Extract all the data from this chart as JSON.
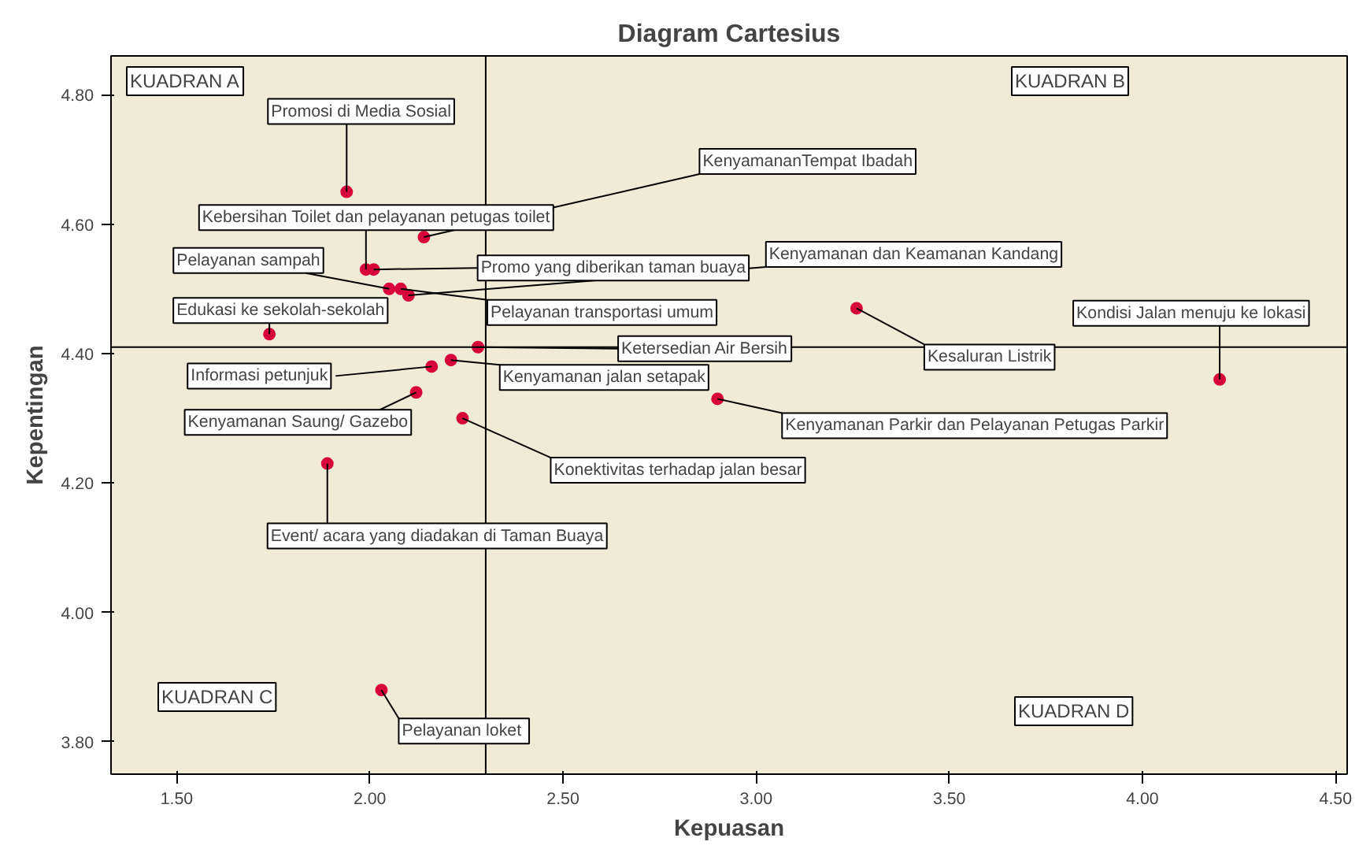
{
  "chart_data": {
    "type": "scatter",
    "title": "Diagram Cartesius",
    "xlabel": "Kepuasan",
    "ylabel": "Kepentingan",
    "x": [
      1.94,
      2.14,
      1.99,
      2.05,
      2.01,
      2.1,
      1.74,
      2.08,
      2.28,
      2.16,
      2.21,
      2.12,
      2.24,
      2.9,
      3.26,
      4.2,
      1.89,
      2.03
    ],
    "values": [
      4.65,
      4.58,
      4.53,
      4.5,
      4.53,
      4.49,
      4.43,
      4.5,
      4.41,
      4.38,
      4.39,
      4.34,
      4.3,
      4.33,
      4.47,
      4.36,
      4.23,
      3.88
    ],
    "color": "#d7063a",
    "marker": "circle",
    "grid": false,
    "xlim": [
      1.33,
      4.53
    ],
    "ylim": [
      3.75,
      4.86
    ],
    "xticks": [
      {
        "value": 1.5,
        "label": "1.50"
      },
      {
        "value": 2.0,
        "label": "2.00"
      },
      {
        "value": 2.5,
        "label": "2.50"
      },
      {
        "value": 3.0,
        "label": "3.00"
      },
      {
        "value": 3.5,
        "label": "3.50"
      },
      {
        "value": 4.0,
        "label": "4.00"
      },
      {
        "value": 4.5,
        "label": "4.50"
      }
    ],
    "yticks": [
      {
        "value": 3.8,
        "label": "3.80"
      },
      {
        "value": 4.0,
        "label": "4.00"
      },
      {
        "value": 4.2,
        "label": "4.20"
      },
      {
        "value": 4.4,
        "label": "4.40"
      },
      {
        "value": 4.6,
        "label": "4.60"
      },
      {
        "value": 4.8,
        "label": "4.80"
      }
    ],
    "ref_lines": [
      {
        "axis": "x",
        "value": 2.3,
        "color": "#000000"
      },
      {
        "axis": "y",
        "value": 4.41,
        "color": "#000000"
      }
    ],
    "annotations": [
      {
        "text": "Promosi di Media Sosial",
        "x": 1.94,
        "y": 4.65
      },
      {
        "text": "KenyamananTempat Ibadah",
        "x": 2.14,
        "y": 4.58
      },
      {
        "text": "Kebersihan Toilet dan pelayanan petugas toilet",
        "x": 1.99,
        "y": 4.53
      },
      {
        "text": "Pelayanan sampah",
        "x": 2.05,
        "y": 4.5
      },
      {
        "text": "Promo yang diberikan taman buaya",
        "x": 2.01,
        "y": 4.53
      },
      {
        "text": "Kenyamanan dan Keamanan Kandang",
        "x": 2.1,
        "y": 4.49
      },
      {
        "text": "Edukasi ke sekolah-sekolah",
        "x": 1.74,
        "y": 4.43
      },
      {
        "text": "Pelayanan transportasi umum",
        "x": 2.08,
        "y": 4.5
      },
      {
        "text": "Ketersedian Air Bersih",
        "x": 2.28,
        "y": 4.41
      },
      {
        "text": "Informasi petunjuk",
        "x": 2.16,
        "y": 4.38
      },
      {
        "text": "Kenyamanan jalan setapak",
        "x": 2.21,
        "y": 4.39
      },
      {
        "text": "Kenyamanan Saung/ Gazebo",
        "x": 2.12,
        "y": 4.34
      },
      {
        "text": "Konektivitas terhadap jalan besar",
        "x": 2.24,
        "y": 4.3
      },
      {
        "text": "Kenyamanan Parkir dan Pelayanan Petugas Parkir",
        "x": 2.9,
        "y": 4.33
      },
      {
        "text": "Kesaluran Listrik",
        "x": 3.26,
        "y": 4.47
      },
      {
        "text": "Kondisi Jalan menuju ke lokasi",
        "x": 4.2,
        "y": 4.36
      },
      {
        "text": "Event/ acara yang diadakan di Taman Buaya",
        "x": 1.89,
        "y": 4.23
      },
      {
        "text": "Pelayanan  loket",
        "x": 2.03,
        "y": 3.88
      },
      "KUADRAN A",
      "KUADRAN B",
      "KUADRAN C",
      "KUADRAN D"
    ]
  }
}
